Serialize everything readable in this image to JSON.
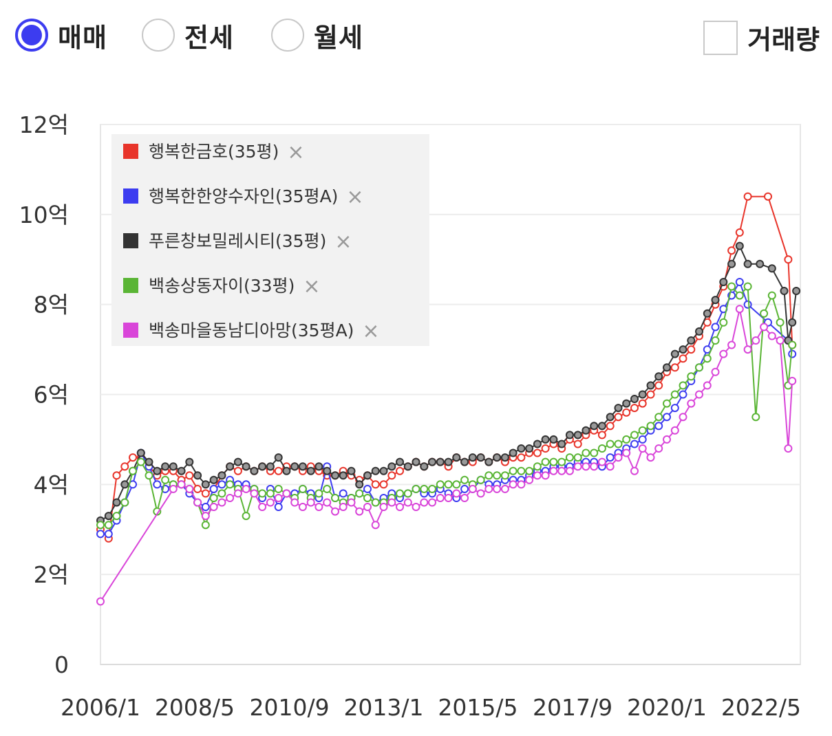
{
  "controls": {
    "radios": [
      {
        "label": "매매",
        "selected": true
      },
      {
        "label": "전세",
        "selected": false
      },
      {
        "label": "월세",
        "selected": false
      }
    ],
    "volume_label": "거래량",
    "volume_checked": false,
    "accent_color": "#3c3cf0"
  },
  "chart_data": {
    "type": "line",
    "title": "",
    "xlabel": "",
    "ylabel": "",
    "ylim": [
      0,
      12
    ],
    "y_ticks": [
      {
        "value": 0,
        "label": "0"
      },
      {
        "value": 2,
        "label": "2억"
      },
      {
        "value": 4,
        "label": "4억"
      },
      {
        "value": 6,
        "label": "6억"
      },
      {
        "value": 8,
        "label": "8억"
      },
      {
        "value": 10,
        "label": "10억"
      },
      {
        "value": 12,
        "label": "12억"
      }
    ],
    "xlim": [
      2006.0,
      2023.3
    ],
    "x_ticks": [
      {
        "value": 2006.0,
        "label": "2006/1"
      },
      {
        "value": 2008.33,
        "label": "2008/5"
      },
      {
        "value": 2010.67,
        "label": "2010/9"
      },
      {
        "value": 2013.0,
        "label": "2013/1"
      },
      {
        "value": 2015.33,
        "label": "2015/5"
      },
      {
        "value": 2017.67,
        "label": "2017/9"
      },
      {
        "value": 2020.0,
        "label": "2020/1"
      },
      {
        "value": 2022.33,
        "label": "2022/5"
      }
    ],
    "grid": true,
    "legend_position": "top-left",
    "series": [
      {
        "name": "행복한금호(35평)",
        "color": "#e8342a",
        "x": [
          2006.0,
          2006.2,
          2006.4,
          2006.6,
          2006.8,
          2007.0,
          2007.2,
          2007.4,
          2007.6,
          2007.8,
          2008.0,
          2008.2,
          2008.4,
          2008.6,
          2008.8,
          2009.0,
          2009.2,
          2009.4,
          2009.6,
          2009.8,
          2010.0,
          2010.2,
          2010.4,
          2010.6,
          2010.8,
          2011.0,
          2011.2,
          2011.4,
          2011.6,
          2011.8,
          2012.0,
          2012.2,
          2012.4,
          2012.6,
          2012.8,
          2013.0,
          2013.2,
          2013.4,
          2013.6,
          2013.8,
          2014.0,
          2014.2,
          2014.4,
          2014.6,
          2014.8,
          2015.0,
          2015.2,
          2015.4,
          2015.6,
          2015.8,
          2016.0,
          2016.2,
          2016.4,
          2016.6,
          2016.8,
          2017.0,
          2017.2,
          2017.4,
          2017.6,
          2017.8,
          2018.0,
          2018.2,
          2018.4,
          2018.6,
          2018.8,
          2019.0,
          2019.2,
          2019.4,
          2019.6,
          2019.8,
          2020.0,
          2020.2,
          2020.4,
          2020.6,
          2020.8,
          2021.0,
          2021.2,
          2021.4,
          2021.6,
          2021.8,
          2022.0,
          2022.5,
          2023.0,
          2023.1
        ],
        "values": [
          3.0,
          2.8,
          4.2,
          4.4,
          4.6,
          4.6,
          4.4,
          4.2,
          4.3,
          4.3,
          4.1,
          4.2,
          3.9,
          3.8,
          3.9,
          4.2,
          4.4,
          4.3,
          4.4,
          4.3,
          4.4,
          4.3,
          4.3,
          4.4,
          4.4,
          4.3,
          4.4,
          4.3,
          4.2,
          4.2,
          4.3,
          4.2,
          4.1,
          4.2,
          4.0,
          4.0,
          4.2,
          4.3,
          4.4,
          4.5,
          4.4,
          4.5,
          4.5,
          4.4,
          4.6,
          4.5,
          4.5,
          4.6,
          4.5,
          4.6,
          4.5,
          4.6,
          4.6,
          4.7,
          4.7,
          4.8,
          4.9,
          4.8,
          5.0,
          4.9,
          5.1,
          5.2,
          5.1,
          5.3,
          5.5,
          5.6,
          5.7,
          5.8,
          6.0,
          6.2,
          6.5,
          6.6,
          6.8,
          7.0,
          7.3,
          7.6,
          8.0,
          8.4,
          9.2,
          9.6,
          10.4,
          10.4,
          9.0,
          7.1
        ]
      },
      {
        "name": "행복한한양수자인(35평A)",
        "color": "#3c3cf0",
        "x": [
          2006.0,
          2006.2,
          2006.4,
          2006.6,
          2006.8,
          2007.0,
          2007.2,
          2007.4,
          2007.6,
          2007.8,
          2008.0,
          2008.2,
          2008.4,
          2008.6,
          2008.8,
          2009.0,
          2009.2,
          2009.4,
          2009.6,
          2009.8,
          2010.0,
          2010.2,
          2010.4,
          2010.6,
          2010.8,
          2011.0,
          2011.2,
          2011.4,
          2011.6,
          2011.8,
          2012.0,
          2012.2,
          2012.4,
          2012.6,
          2012.8,
          2013.0,
          2013.2,
          2013.4,
          2013.6,
          2013.8,
          2014.0,
          2014.2,
          2014.4,
          2014.6,
          2014.8,
          2015.0,
          2015.2,
          2015.4,
          2015.6,
          2015.8,
          2016.0,
          2016.2,
          2016.4,
          2016.6,
          2016.8,
          2017.0,
          2017.2,
          2017.4,
          2017.6,
          2017.8,
          2018.0,
          2018.2,
          2018.4,
          2018.6,
          2018.8,
          2019.0,
          2019.2,
          2019.4,
          2019.6,
          2019.8,
          2020.0,
          2020.2,
          2020.4,
          2020.6,
          2020.8,
          2021.0,
          2021.2,
          2021.4,
          2021.6,
          2021.8,
          2022.0,
          2022.5,
          2023.0,
          2023.1
        ],
        "values": [
          2.9,
          2.9,
          3.2,
          3.6,
          4.0,
          4.7,
          4.4,
          4.0,
          3.9,
          4.0,
          4.0,
          3.8,
          3.6,
          3.5,
          3.9,
          4.0,
          4.1,
          4.0,
          4.0,
          3.9,
          3.7,
          3.9,
          3.5,
          3.8,
          3.8,
          3.9,
          3.8,
          3.7,
          4.4,
          3.7,
          3.8,
          3.7,
          3.8,
          3.9,
          3.6,
          3.7,
          3.8,
          3.7,
          3.8,
          3.9,
          3.8,
          3.8,
          3.9,
          3.8,
          3.7,
          3.9,
          3.9,
          4.1,
          4.0,
          4.0,
          4.1,
          4.1,
          4.1,
          4.2,
          4.3,
          4.3,
          4.4,
          4.4,
          4.4,
          4.5,
          4.5,
          4.5,
          4.4,
          4.6,
          4.7,
          4.8,
          4.9,
          5.0,
          5.2,
          5.3,
          5.5,
          5.7,
          6.0,
          6.3,
          6.6,
          7.0,
          7.5,
          7.9,
          8.2,
          8.5,
          8.0,
          7.6,
          7.2,
          6.9
        ]
      },
      {
        "name": "푸른창보밀레시티(35평)",
        "color": "#333333",
        "x": [
          2006.0,
          2006.2,
          2006.4,
          2006.6,
          2006.8,
          2007.0,
          2007.2,
          2007.4,
          2007.6,
          2007.8,
          2008.0,
          2008.2,
          2008.4,
          2008.6,
          2008.8,
          2009.0,
          2009.2,
          2009.4,
          2009.6,
          2009.8,
          2010.0,
          2010.2,
          2010.4,
          2010.6,
          2010.8,
          2011.0,
          2011.2,
          2011.4,
          2011.6,
          2011.8,
          2012.0,
          2012.2,
          2012.4,
          2012.6,
          2012.8,
          2013.0,
          2013.2,
          2013.4,
          2013.6,
          2013.8,
          2014.0,
          2014.2,
          2014.4,
          2014.6,
          2014.8,
          2015.0,
          2015.2,
          2015.4,
          2015.6,
          2015.8,
          2016.0,
          2016.2,
          2016.4,
          2016.6,
          2016.8,
          2017.0,
          2017.2,
          2017.4,
          2017.6,
          2017.8,
          2018.0,
          2018.2,
          2018.4,
          2018.6,
          2018.8,
          2019.0,
          2019.2,
          2019.4,
          2019.6,
          2019.8,
          2020.0,
          2020.2,
          2020.4,
          2020.6,
          2020.8,
          2021.0,
          2021.2,
          2021.4,
          2021.6,
          2021.8,
          2022.0,
          2022.3,
          2022.6,
          2022.9,
          2023.0,
          2023.1,
          2023.2
        ],
        "values": [
          3.2,
          3.3,
          3.6,
          4.0,
          4.3,
          4.7,
          4.5,
          4.3,
          4.4,
          4.4,
          4.3,
          4.5,
          4.2,
          4.0,
          4.1,
          4.2,
          4.4,
          4.5,
          4.4,
          4.3,
          4.4,
          4.4,
          4.6,
          4.3,
          4.4,
          4.4,
          4.3,
          4.4,
          4.3,
          4.2,
          4.2,
          4.3,
          4.0,
          4.2,
          4.3,
          4.3,
          4.4,
          4.5,
          4.4,
          4.5,
          4.4,
          4.5,
          4.5,
          4.5,
          4.6,
          4.5,
          4.6,
          4.6,
          4.5,
          4.6,
          4.6,
          4.7,
          4.8,
          4.8,
          4.9,
          5.0,
          5.0,
          4.9,
          5.1,
          5.1,
          5.2,
          5.3,
          5.3,
          5.5,
          5.7,
          5.8,
          5.9,
          6.0,
          6.2,
          6.4,
          6.6,
          6.9,
          7.0,
          7.2,
          7.4,
          7.8,
          8.1,
          8.5,
          8.9,
          9.3,
          8.9,
          8.9,
          8.8,
          8.3,
          7.2,
          7.6,
          8.3
        ]
      },
      {
        "name": "백송상동자이(33평)",
        "color": "#5ab535",
        "x": [
          2006.0,
          2006.2,
          2006.4,
          2006.6,
          2006.8,
          2007.0,
          2007.2,
          2007.4,
          2007.6,
          2007.8,
          2008.0,
          2008.2,
          2008.4,
          2008.6,
          2008.8,
          2009.0,
          2009.2,
          2009.4,
          2009.6,
          2009.8,
          2010.0,
          2010.2,
          2010.4,
          2010.6,
          2010.8,
          2011.0,
          2011.2,
          2011.4,
          2011.6,
          2011.8,
          2012.0,
          2012.2,
          2012.4,
          2012.6,
          2012.8,
          2013.0,
          2013.2,
          2013.4,
          2013.6,
          2013.8,
          2014.0,
          2014.2,
          2014.4,
          2014.6,
          2014.8,
          2015.0,
          2015.2,
          2015.4,
          2015.6,
          2015.8,
          2016.0,
          2016.2,
          2016.4,
          2016.6,
          2016.8,
          2017.0,
          2017.2,
          2017.4,
          2017.6,
          2017.8,
          2018.0,
          2018.2,
          2018.4,
          2018.6,
          2018.8,
          2019.0,
          2019.2,
          2019.4,
          2019.6,
          2019.8,
          2020.0,
          2020.2,
          2020.4,
          2020.6,
          2020.8,
          2021.0,
          2021.2,
          2021.4,
          2021.6,
          2021.8,
          2022.0,
          2022.2,
          2022.4,
          2022.6,
          2022.8,
          2023.0,
          2023.1
        ],
        "values": [
          3.1,
          3.1,
          3.3,
          3.6,
          4.3,
          4.5,
          4.2,
          3.4,
          4.1,
          4.0,
          4.0,
          3.9,
          3.6,
          3.1,
          3.7,
          3.8,
          4.0,
          3.9,
          3.3,
          3.9,
          3.8,
          3.8,
          3.9,
          3.8,
          3.7,
          3.9,
          3.7,
          3.8,
          3.9,
          3.7,
          3.6,
          3.7,
          3.8,
          3.7,
          3.6,
          3.6,
          3.7,
          3.8,
          3.8,
          3.9,
          3.9,
          3.9,
          4.0,
          4.0,
          4.0,
          4.1,
          4.0,
          4.1,
          4.2,
          4.2,
          4.2,
          4.3,
          4.3,
          4.3,
          4.4,
          4.5,
          4.5,
          4.5,
          4.6,
          4.6,
          4.7,
          4.7,
          4.8,
          4.9,
          4.9,
          5.0,
          5.1,
          5.2,
          5.3,
          5.5,
          5.8,
          6.0,
          6.2,
          6.4,
          6.6,
          6.8,
          7.2,
          7.6,
          8.4,
          8.2,
          8.4,
          5.5,
          7.8,
          8.2,
          7.6,
          6.2,
          7.1
        ]
      },
      {
        "name": "백송마을동남디아망(35평A)",
        "color": "#d945d9",
        "x": [
          2006.0,
          2007.8,
          2008.0,
          2008.2,
          2008.4,
          2008.6,
          2008.8,
          2009.0,
          2009.2,
          2009.4,
          2009.6,
          2009.8,
          2010.0,
          2010.2,
          2010.4,
          2010.6,
          2010.8,
          2011.0,
          2011.2,
          2011.4,
          2011.6,
          2011.8,
          2012.0,
          2012.2,
          2012.4,
          2012.6,
          2012.8,
          2013.0,
          2013.2,
          2013.4,
          2013.6,
          2013.8,
          2014.0,
          2014.2,
          2014.4,
          2014.6,
          2014.8,
          2015.0,
          2015.2,
          2015.4,
          2015.6,
          2015.8,
          2016.0,
          2016.2,
          2016.4,
          2016.6,
          2016.8,
          2017.0,
          2017.2,
          2017.4,
          2017.6,
          2017.8,
          2018.0,
          2018.2,
          2018.4,
          2018.6,
          2018.8,
          2019.0,
          2019.2,
          2019.4,
          2019.6,
          2019.8,
          2020.0,
          2020.2,
          2020.4,
          2020.6,
          2020.8,
          2021.0,
          2021.2,
          2021.4,
          2021.6,
          2021.8,
          2022.0,
          2022.2,
          2022.4,
          2022.6,
          2022.8,
          2023.0,
          2023.1
        ],
        "values": [
          1.4,
          3.9,
          4.0,
          3.9,
          3.6,
          3.3,
          3.5,
          3.6,
          3.7,
          3.8,
          3.9,
          3.8,
          3.5,
          3.6,
          3.7,
          3.8,
          3.6,
          3.5,
          3.6,
          3.5,
          3.6,
          3.4,
          3.5,
          3.6,
          3.4,
          3.5,
          3.1,
          3.5,
          3.6,
          3.5,
          3.6,
          3.5,
          3.6,
          3.6,
          3.7,
          3.7,
          3.8,
          3.7,
          3.9,
          3.8,
          3.9,
          3.9,
          3.9,
          4.0,
          4.0,
          4.1,
          4.2,
          4.2,
          4.3,
          4.3,
          4.3,
          4.4,
          4.4,
          4.4,
          4.5,
          4.4,
          4.6,
          4.7,
          4.3,
          4.8,
          4.6,
          4.8,
          5.0,
          5.2,
          5.5,
          5.8,
          6.0,
          6.2,
          6.5,
          6.9,
          7.1,
          7.9,
          7.0,
          7.2,
          7.5,
          7.3,
          7.2,
          4.8,
          6.3
        ]
      }
    ]
  }
}
